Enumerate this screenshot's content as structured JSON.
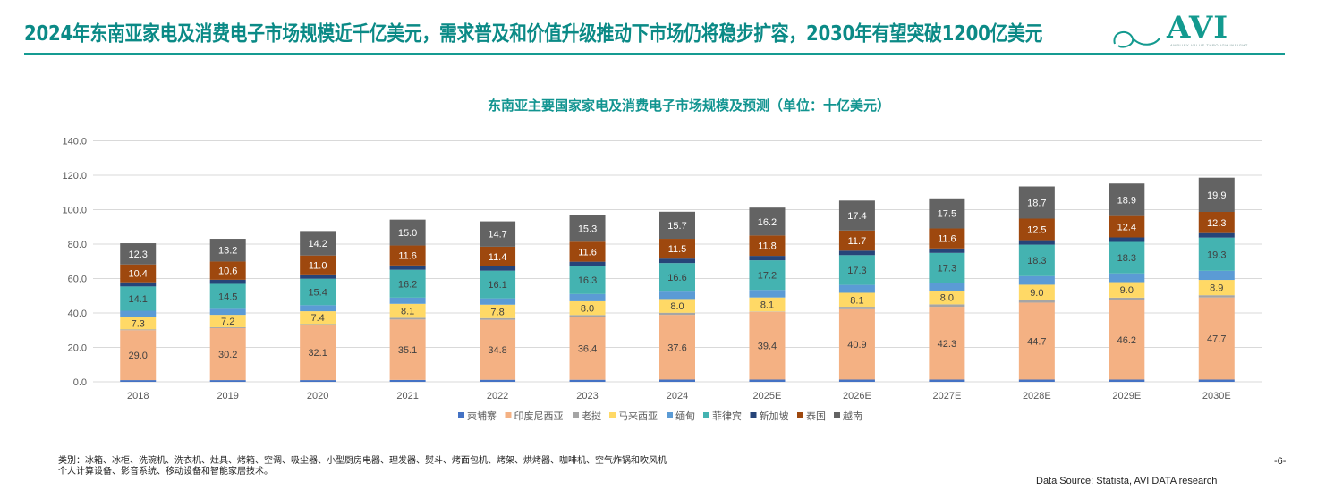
{
  "header": {
    "headline": "2024年东南亚家电及消费电子市场规模近千亿美元，需求普及和价值升级推动下市场仍将稳步扩容，2030年有望突破1200亿美元",
    "logo_text": "AVI",
    "logo_tagline": "AMPLIFY VALUE THROUGH INSIGHT",
    "accent_color": "#0b8a86"
  },
  "footer": {
    "footnote_line1": "类别：冰箱、冰柜、洗碗机、洗衣机、灶具、烤箱、空调、吸尘器、小型厨房电器、理发器、熨斗、烤面包机、烤架、烘烤器、咖啡机、空气炸锅和吹风机",
    "footnote_line2": "个人计算设备、影音系统、移动设备和智能家居技术。",
    "page_number": "-6-",
    "source": "Data Source: Statista, AVI DATA research"
  },
  "chart_data": {
    "type": "bar",
    "stacked": true,
    "title": "东南亚主要国家家电及消费电子市场规模及预测（单位：十亿美元）",
    "xlabel": "",
    "ylabel": "",
    "ylim": [
      0,
      140
    ],
    "yticks": [
      0,
      20,
      40,
      60,
      80,
      100,
      120,
      140
    ],
    "ytick_labels": [
      "0.0",
      "20.0",
      "40.0",
      "60.0",
      "80.0",
      "100.0",
      "120.0",
      "140.0"
    ],
    "grid": true,
    "legend_position": "bottom",
    "categories": [
      "2018",
      "2019",
      "2020",
      "2021",
      "2022",
      "2023",
      "2024",
      "2025E",
      "2026E",
      "2027E",
      "2028E",
      "2029E",
      "2030E"
    ],
    "series": [
      {
        "name": "柬埔寨",
        "color": "#4472c4",
        "show_labels": false,
        "values": [
          1.0,
          1.0,
          1.0,
          1.1,
          1.2,
          1.2,
          1.3,
          1.3,
          1.3,
          1.3,
          1.3,
          1.3,
          1.3
        ]
      },
      {
        "name": "印度尼西亚",
        "color": "#f4b183",
        "show_labels": true,
        "values": [
          29.0,
          30.2,
          32.1,
          35.1,
          34.8,
          36.4,
          37.6,
          39.4,
          40.9,
          42.3,
          44.7,
          46.2,
          47.7
        ]
      },
      {
        "name": "老挝",
        "color": "#a5a5a5",
        "show_labels": false,
        "values": [
          0.5,
          0.5,
          0.5,
          1.0,
          1.0,
          1.2,
          1.2,
          0.2,
          1.4,
          1.4,
          1.4,
          1.4,
          1.3
        ]
      },
      {
        "name": "马来西亚",
        "color": "#ffd966",
        "show_labels": true,
        "values": [
          7.3,
          7.2,
          7.4,
          8.1,
          7.8,
          8.0,
          8.0,
          8.1,
          8.1,
          8.0,
          9.0,
          9.0,
          8.9
        ]
      },
      {
        "name": "缅甸",
        "color": "#5b9bd5",
        "show_labels": false,
        "values": [
          3.5,
          3.5,
          3.5,
          3.6,
          3.7,
          4.2,
          4.3,
          4.4,
          4.6,
          4.6,
          5.0,
          5.1,
          5.3
        ]
      },
      {
        "name": "菲律宾",
        "color": "#44b3b1",
        "show_labels": true,
        "values": [
          14.1,
          14.5,
          15.4,
          16.2,
          16.1,
          16.3,
          16.6,
          17.2,
          17.3,
          17.3,
          18.3,
          18.3,
          19.3
        ]
      },
      {
        "name": "新加坡",
        "color": "#264478",
        "show_labels": false,
        "values": [
          2.4,
          2.4,
          2.5,
          2.5,
          2.5,
          2.5,
          2.6,
          2.6,
          2.6,
          2.6,
          2.6,
          2.6,
          2.6
        ]
      },
      {
        "name": "泰国",
        "color": "#9e480e",
        "show_labels": true,
        "values": [
          10.4,
          10.6,
          11.0,
          11.6,
          11.4,
          11.6,
          11.5,
          11.8,
          11.7,
          11.6,
          12.5,
          12.4,
          12.3
        ]
      },
      {
        "name": "越南",
        "color": "#636363",
        "show_labels": true,
        "values": [
          12.3,
          13.2,
          14.2,
          15.0,
          14.7,
          15.3,
          15.7,
          16.2,
          17.4,
          17.5,
          18.7,
          18.9,
          19.9
        ]
      }
    ]
  }
}
